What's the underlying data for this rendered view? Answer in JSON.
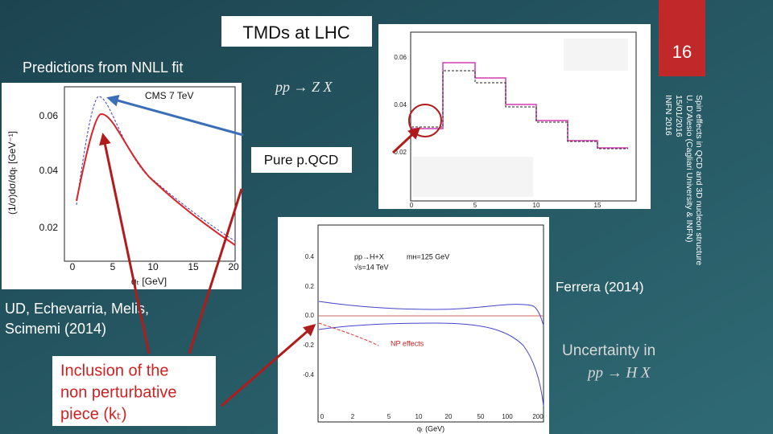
{
  "title": "TMDs at LHC",
  "slide_number": "16",
  "subtitle": "Predictions from  NNLL fit",
  "formula_top": "pp → Z X",
  "annotation": "Pure p.QCD",
  "left_plot": {
    "label": "CMS 7 TeV",
    "y_axis_label": "(1/σ)dσ/dqₜ [GeV⁻¹]",
    "x_axis_label": "qₜ [GeV]",
    "yticks": [
      "0.06",
      "0.04",
      "0.02"
    ],
    "xticks": [
      "0",
      "5",
      "10",
      "15",
      "20"
    ]
  },
  "right_plot": {
    "yticks": [
      "0.06",
      "0.04",
      "0.02"
    ],
    "xticks": [
      "0",
      "5",
      "10",
      "15"
    ]
  },
  "side_note": [
    "Spin effects in QCD and 3D nucleon structure",
    "U. D'Alesio (Cagliari University & INFN)",
    "15/01/2016",
    "INFN 2016"
  ],
  "credit": "Ferrera (2014)",
  "authors": [
    "UD, Echevarria, Melis,",
    "Scimemi (2014)"
  ],
  "callout": [
    "Inclusion of the",
    "non perturbative",
    "piece (kₜ)"
  ],
  "bottom_plot": {
    "process": "pp→H+X",
    "energy": "√s=14 TeV",
    "mass": "mʜ=125 GeV",
    "np_label": "NP effects",
    "x_axis_label": "qₜ (GeV)",
    "yticks": [
      "0.4",
      "0.2",
      "0.0",
      "-0.2",
      "-0.4"
    ],
    "xticks": [
      "0",
      "2",
      "5",
      "10",
      "20",
      "50",
      "100",
      "200"
    ]
  },
  "uncertainty": [
    "Uncertainty in",
    "pp → H X"
  ]
}
